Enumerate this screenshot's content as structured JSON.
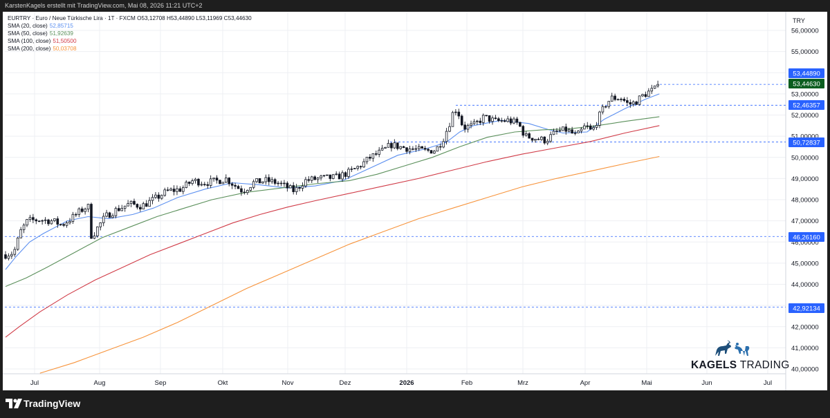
{
  "header": {
    "attribution": "KarstenKagels erstellt mit TradingView.com, Mai 08, 2026 11:21 UTC+2"
  },
  "legend": {
    "title": "EURTRY · Euro  / Neue Türkische Lira · 1T · FXCM  O53,12708  H53,44890  L53,11969  C53,44630",
    "sma20": {
      "label": "SMA (20, close)",
      "value": "52,85715",
      "color": "#5b8ff0"
    },
    "sma50": {
      "label": "SMA (50, close)",
      "value": "51,92639",
      "color": "#5a8f5a"
    },
    "sma100": {
      "label": "SMA (100, close)",
      "value": "51,50500",
      "color": "#d03a46"
    },
    "sma200": {
      "label": "SMA (200, close)",
      "value": "50,03708",
      "color": "#f7933a"
    }
  },
  "currency": "TRY",
  "brand": {
    "bold": "KAGELS",
    "light": "TRADING"
  },
  "footer": {
    "logo_text": "TradingView"
  },
  "colors": {
    "up": "#26a69a",
    "down": "#ef5350",
    "candle": "#131722",
    "grid": "#eeeff3",
    "level": "#2962ff",
    "last_price": "#0b5d1e"
  },
  "chart_data": {
    "type": "candlestick",
    "symbol": "EURTRY",
    "interval": "1T",
    "ylim": [
      39.8,
      56.3
    ],
    "y_ticks": [
      "56,00000",
      "55,00000",
      "54,00000",
      "53,00000",
      "52,00000",
      "51,00000",
      "50,00000",
      "49,00000",
      "48,00000",
      "47,00000",
      "46,00000",
      "45,00000",
      "44,00000",
      "43,00000",
      "42,00000",
      "41,00000",
      "40,00000"
    ],
    "x_ticks": [
      "Jul",
      "Aug",
      "Sep",
      "Okt",
      "Nov",
      "Dez",
      "2026",
      "Feb",
      "Mrz",
      "Apr",
      "Mai",
      "Jun",
      "Jul"
    ],
    "price_levels": [
      {
        "label": "53,44890",
        "value": 53.4489,
        "kind": "high"
      },
      {
        "label": "53,44630",
        "value": 53.4463,
        "kind": "last"
      },
      {
        "label": "52,46357",
        "value": 52.46357,
        "kind": "support"
      },
      {
        "label": "50,72837",
        "value": 50.72837,
        "kind": "support"
      },
      {
        "label": "46,26160",
        "value": 46.2616,
        "kind": "support"
      },
      {
        "label": "42,92134",
        "value": 42.92134,
        "kind": "support"
      }
    ],
    "close_path": [
      [
        0,
        45.4
      ],
      [
        12,
        45.5
      ],
      [
        22,
        46.5
      ],
      [
        32,
        47.0
      ],
      [
        48,
        47.05
      ],
      [
        68,
        47.0
      ],
      [
        82,
        46.8
      ],
      [
        95,
        47.1
      ],
      [
        110,
        47.5
      ],
      [
        120,
        47.7
      ],
      [
        125,
        46.2
      ],
      [
        132,
        46.6
      ],
      [
        145,
        47.2
      ],
      [
        160,
        47.5
      ],
      [
        180,
        47.8
      ],
      [
        198,
        47.7
      ],
      [
        215,
        48.0
      ],
      [
        235,
        48.4
      ],
      [
        255,
        48.5
      ],
      [
        272,
        48.9
      ],
      [
        290,
        48.8
      ],
      [
        310,
        48.9
      ],
      [
        320,
        49.0
      ],
      [
        332,
        48.7
      ],
      [
        345,
        48.4
      ],
      [
        360,
        48.8
      ],
      [
        378,
        48.9
      ],
      [
        395,
        48.8
      ],
      [
        408,
        48.6
      ],
      [
        420,
        48.4
      ],
      [
        435,
        48.9
      ],
      [
        455,
        49.0
      ],
      [
        480,
        49.05
      ],
      [
        500,
        49.3
      ],
      [
        515,
        49.6
      ],
      [
        530,
        50.0
      ],
      [
        548,
        50.3
      ],
      [
        560,
        50.6
      ],
      [
        572,
        50.5
      ],
      [
        590,
        50.4
      ],
      [
        610,
        50.3
      ],
      [
        625,
        50.35
      ],
      [
        635,
        50.8
      ],
      [
        645,
        51.6
      ],
      [
        652,
        52.3
      ],
      [
        657,
        52.2
      ],
      [
        665,
        51.4
      ],
      [
        680,
        51.5
      ],
      [
        695,
        51.9
      ],
      [
        712,
        51.7
      ],
      [
        730,
        51.75
      ],
      [
        745,
        51.6
      ],
      [
        755,
        51.0
      ],
      [
        770,
        50.9
      ],
      [
        785,
        50.8
      ],
      [
        800,
        51.2
      ],
      [
        815,
        51.3
      ],
      [
        830,
        51.0
      ],
      [
        843,
        51.5
      ],
      [
        852,
        51.2
      ],
      [
        862,
        51.9
      ],
      [
        872,
        52.5
      ],
      [
        880,
        52.8
      ],
      [
        895,
        52.8
      ],
      [
        905,
        52.5
      ],
      [
        915,
        52.6
      ],
      [
        925,
        52.9
      ],
      [
        935,
        53.1
      ],
      [
        943,
        53.2
      ],
      [
        948,
        53.45
      ]
    ],
    "sma_paths": {
      "sma20": [
        [
          0,
          44.7
        ],
        [
          15,
          45.3
        ],
        [
          35,
          46.0
        ],
        [
          55,
          46.4
        ],
        [
          90,
          47.0
        ],
        [
          120,
          47.2
        ],
        [
          150,
          47.1
        ],
        [
          185,
          47.3
        ],
        [
          215,
          47.6
        ],
        [
          250,
          48.1
        ],
        [
          290,
          48.5
        ],
        [
          330,
          48.8
        ],
        [
          370,
          48.7
        ],
        [
          410,
          48.55
        ],
        [
          450,
          48.65
        ],
        [
          490,
          48.9
        ],
        [
          530,
          49.5
        ],
        [
          570,
          50.1
        ],
        [
          610,
          50.4
        ],
        [
          640,
          50.7
        ],
        [
          660,
          51.2
        ],
        [
          680,
          51.5
        ],
        [
          720,
          51.75
        ],
        [
          760,
          51.6
        ],
        [
          790,
          51.3
        ],
        [
          810,
          51.15
        ],
        [
          845,
          51.2
        ],
        [
          870,
          51.8
        ],
        [
          900,
          52.3
        ],
        [
          930,
          52.75
        ],
        [
          950,
          53.0
        ]
      ],
      "sma50": [
        [
          0,
          43.9
        ],
        [
          30,
          44.3
        ],
        [
          60,
          44.8
        ],
        [
          100,
          45.5
        ],
        [
          140,
          46.2
        ],
        [
          180,
          46.7
        ],
        [
          220,
          47.2
        ],
        [
          260,
          47.6
        ],
        [
          300,
          48.0
        ],
        [
          350,
          48.35
        ],
        [
          400,
          48.55
        ],
        [
          450,
          48.75
        ],
        [
          500,
          48.9
        ],
        [
          540,
          49.2
        ],
        [
          580,
          49.6
        ],
        [
          620,
          50.0
        ],
        [
          660,
          50.5
        ],
        [
          700,
          50.95
        ],
        [
          740,
          51.2
        ],
        [
          780,
          51.3
        ],
        [
          820,
          51.35
        ],
        [
          860,
          51.5
        ],
        [
          900,
          51.7
        ],
        [
          950,
          51.92
        ]
      ],
      "sma100": [
        [
          0,
          41.5
        ],
        [
          20,
          42.0
        ],
        [
          50,
          42.7
        ],
        [
          90,
          43.5
        ],
        [
          130,
          44.2
        ],
        [
          170,
          44.8
        ],
        [
          210,
          45.4
        ],
        [
          250,
          45.9
        ],
        [
          290,
          46.4
        ],
        [
          330,
          46.9
        ],
        [
          370,
          47.3
        ],
        [
          410,
          47.65
        ],
        [
          450,
          47.95
        ],
        [
          500,
          48.3
        ],
        [
          550,
          48.65
        ],
        [
          600,
          49.0
        ],
        [
          650,
          49.4
        ],
        [
          700,
          49.8
        ],
        [
          750,
          50.15
        ],
        [
          800,
          50.45
        ],
        [
          850,
          50.75
        ],
        [
          900,
          51.15
        ],
        [
          950,
          51.5
        ]
      ],
      "sma200": [
        [
          50,
          39.8
        ],
        [
          100,
          40.3
        ],
        [
          150,
          40.9
        ],
        [
          200,
          41.5
        ],
        [
          250,
          42.2
        ],
        [
          300,
          43.0
        ],
        [
          350,
          43.8
        ],
        [
          400,
          44.5
        ],
        [
          450,
          45.2
        ],
        [
          500,
          45.9
        ],
        [
          550,
          46.5
        ],
        [
          600,
          47.1
        ],
        [
          650,
          47.6
        ],
        [
          700,
          48.1
        ],
        [
          750,
          48.6
        ],
        [
          800,
          49.0
        ],
        [
          850,
          49.35
        ],
        [
          900,
          49.7
        ],
        [
          950,
          50.04
        ]
      ]
    }
  }
}
